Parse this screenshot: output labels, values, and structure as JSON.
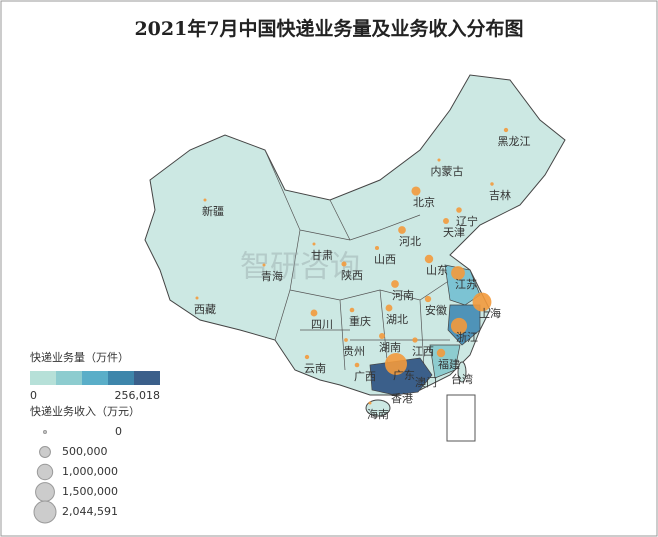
{
  "title": "2021年7月中国快递业务量及业务收入分布图",
  "watermark": "智研咨询",
  "regions": [
    {
      "name": "新疆",
      "revenue": 30000
    },
    {
      "name": "西藏",
      "revenue": 3000
    },
    {
      "name": "青海",
      "revenue": 5000
    },
    {
      "name": "甘肃",
      "revenue": 30000
    },
    {
      "name": "内蒙古",
      "revenue": 40000
    },
    {
      "name": "黑龙江",
      "revenue": 80000
    },
    {
      "name": "吉林",
      "revenue": 50000
    },
    {
      "name": "辽宁",
      "revenue": 130000
    },
    {
      "name": "北京",
      "revenue": 350000
    },
    {
      "name": "天津",
      "revenue": 150000
    },
    {
      "name": "河北",
      "revenue": 250000
    },
    {
      "name": "山西",
      "revenue": 70000
    },
    {
      "name": "山东",
      "revenue": 300000
    },
    {
      "name": "陕西",
      "revenue": 110000
    },
    {
      "name": "河南",
      "revenue": 250000
    },
    {
      "name": "江苏",
      "revenue": 800000
    },
    {
      "name": "安徽",
      "revenue": 170000
    },
    {
      "name": "上海",
      "revenue": 1500000
    },
    {
      "name": "湖北",
      "revenue": 200000
    },
    {
      "name": "四川",
      "revenue": 200000
    },
    {
      "name": "重庆",
      "revenue": 90000
    },
    {
      "name": "浙江",
      "revenue": 1100000
    },
    {
      "name": "贵州",
      "revenue": 60000
    },
    {
      "name": "湖南",
      "revenue": 150000
    },
    {
      "name": "江西",
      "revenue": 120000
    },
    {
      "name": "福建",
      "revenue": 300000
    },
    {
      "name": "云南",
      "revenue": 80000
    },
    {
      "name": "广西",
      "revenue": 90000
    },
    {
      "name": "广东",
      "revenue": 2044591
    },
    {
      "name": "台湾",
      "revenue": null
    },
    {
      "name": "香港",
      "revenue": null
    },
    {
      "name": "澳门",
      "revenue": null
    },
    {
      "name": "海南",
      "revenue": 20000
    }
  ],
  "color_legend": {
    "title": "快递业务量（万件）",
    "ticks": [
      0,
      {
        "value": 256018,
        "label": "256,018"
      }
    ]
  },
  "size_legend": {
    "title": "快递业务收入（万元）",
    "items": [
      0,
      {
        "value": 500000,
        "label": "500,000"
      },
      {
        "value": 1000000,
        "label": "1,000,000"
      },
      {
        "value": 1500000,
        "label": "1,500,000"
      },
      {
        "value": 2044591,
        "label": "2,044,591"
      }
    ]
  }
}
